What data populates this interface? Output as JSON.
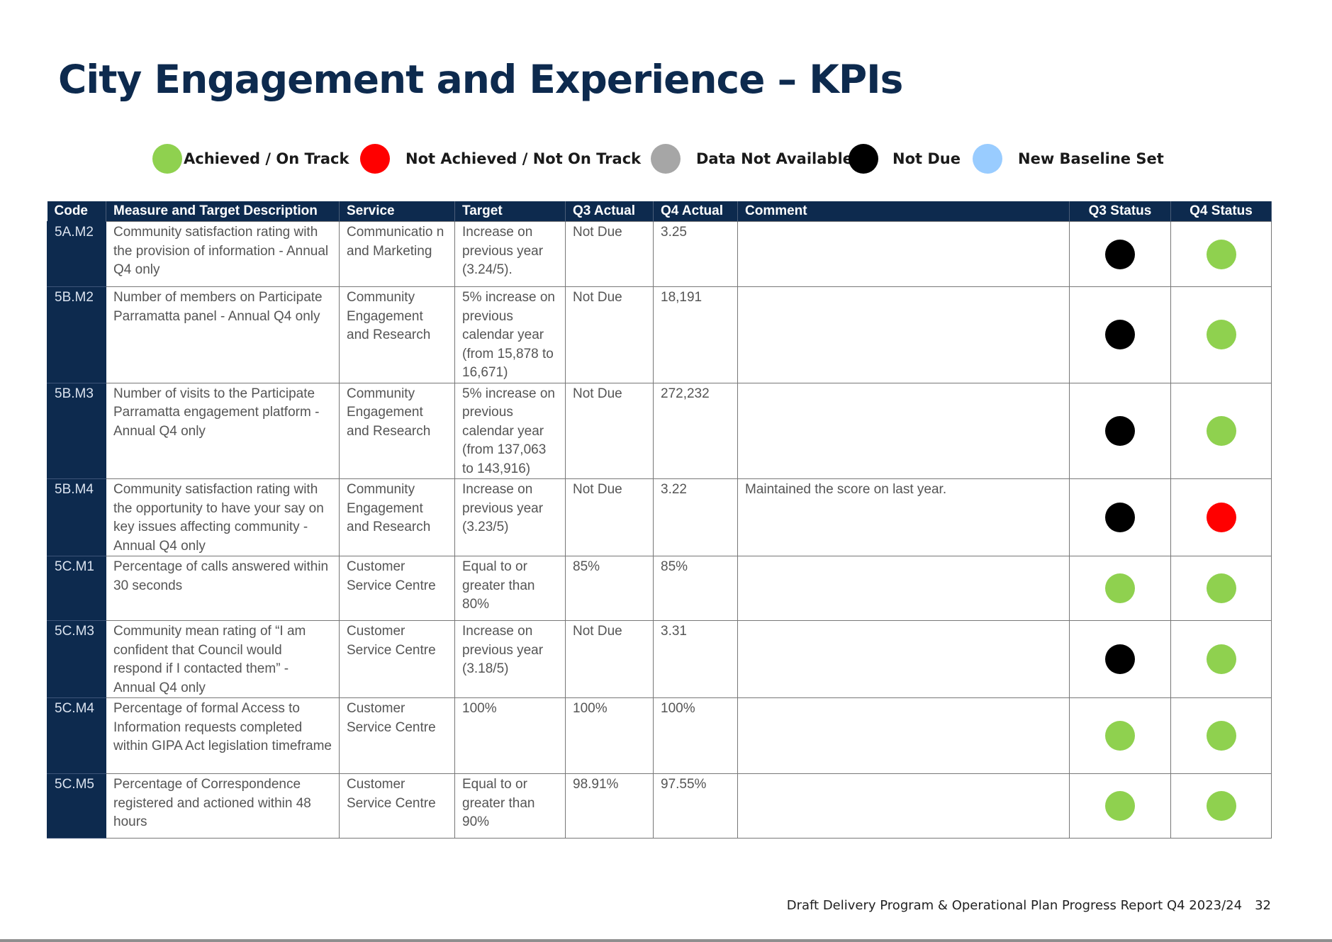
{
  "page": {
    "title": "City Engagement and Experience – KPIs"
  },
  "legend": [
    {
      "label": "Achieved / On Track",
      "color": "#8fd14f"
    },
    {
      "label": "Not Achieved / Not On Track",
      "color": "#ff0000"
    },
    {
      "label": "Data Not Available",
      "color": "#a6a6a6"
    },
    {
      "label": "Not Due",
      "color": "#000000"
    },
    {
      "label": "New Baseline Set",
      "color": "#99ccff"
    }
  ],
  "table": {
    "headers": [
      "Code",
      "Measure and Target Description",
      "Service",
      "Target",
      "Q3 Actual",
      "Q4 Actual",
      "Comment",
      "Q3 Status",
      "Q4 Status"
    ],
    "rows": [
      {
        "code": "5A.M2",
        "measure": "Community satisfaction rating with the provision of information - Annual Q4 only",
        "service": "Communicatio n and Marketing",
        "target": "Increase on previous year (3.24/5).",
        "q3_actual": "Not Due",
        "q4_actual": "3.25",
        "comment": "",
        "q3_status": "Not Due",
        "q4_status": "Achieved / On Track"
      },
      {
        "code": "5B.M2",
        "measure": "Number of members on Participate Parramatta panel - Annual Q4 only",
        "service": "Community Engagement and Research",
        "target": "5% increase on previous calendar year (from 15,878 to 16,671)",
        "q3_actual": "Not Due",
        "q4_actual": "18,191",
        "comment": "",
        "q3_status": "Not Due",
        "q4_status": "Achieved / On Track"
      },
      {
        "code": "5B.M3",
        "measure": "Number of visits to the Participate Parramatta engagement platform - Annual Q4 only",
        "service": "Community Engagement and Research",
        "target": "5% increase on previous calendar year (from 137,063 to 143,916)",
        "q3_actual": "Not Due",
        "q4_actual": "272,232",
        "comment": "",
        "q3_status": "Not Due",
        "q4_status": "Achieved / On Track"
      },
      {
        "code": "5B.M4",
        "measure": "Community satisfaction rating with the opportunity to have your say on key issues affecting community - Annual Q4 only",
        "service": "Community Engagement and Research",
        "target": "Increase on previous year (3.23/5)",
        "q3_actual": "Not Due",
        "q4_actual": "3.22",
        "comment": "Maintained the score on last year.",
        "q3_status": "Not Due",
        "q4_status": "Not Achieved / Not On Track"
      },
      {
        "code": "5C.M1",
        "measure": "Percentage of calls answered within 30 seconds",
        "service": "Customer Service Centre",
        "target": "Equal to or greater than 80%",
        "q3_actual": "85%",
        "q4_actual": "85%",
        "comment": "",
        "q3_status": "Achieved / On Track",
        "q4_status": "Achieved / On Track"
      },
      {
        "code": "5C.M3",
        "measure": "Community mean rating of “I am confident that Council would respond if I contacted them” - Annual Q4 only",
        "service": "Customer Service Centre",
        "target": "Increase on previous year (3.18/5)",
        "q3_actual": "Not Due",
        "q4_actual": "3.31",
        "comment": "",
        "q3_status": "Not Due",
        "q4_status": "Achieved / On Track"
      },
      {
        "code": "5C.M4",
        "measure": "Percentage of formal Access to Information requests completed within GIPA Act legislation timeframe",
        "service": "Customer Service Centre",
        "target": "100%",
        "q3_actual": "100%",
        "q4_actual": "100%",
        "comment": "",
        "q3_status": "Achieved / On Track",
        "q4_status": "Achieved / On Track"
      },
      {
        "code": "5C.M5",
        "measure": "Percentage of Correspondence registered and actioned within 48 hours",
        "service": "Customer Service Centre",
        "target": "Equal to or greater than 90%",
        "q3_actual": "98.91%",
        "q4_actual": "97.55%",
        "comment": "",
        "q3_status": "Achieved / On Track",
        "q4_status": "Achieved / On Track"
      }
    ]
  },
  "footer": {
    "report": "Draft Delivery Program & Operational Plan Progress Report Q4 2023/24",
    "page_number": "32"
  }
}
